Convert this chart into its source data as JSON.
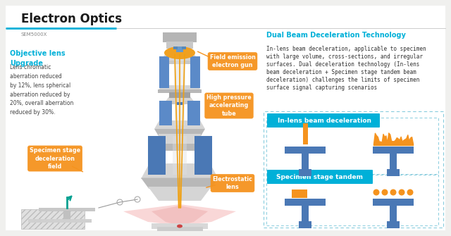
{
  "title": "Electron Optics",
  "subtitle": "SEM5000X",
  "bg_color": "#f5f5f3",
  "title_color": "#1a1a1a",
  "cyan_color": "#00b0d8",
  "orange_color": "#f5931e",
  "blue_color": "#4a78b5",
  "left_title": "Objective lens\nUpgrade",
  "left_text": "Lens chromatic\naberration reduced\nby 12%, lens spherical\naberration reduced by\n20%, overall aberration\nreduced by 30%.",
  "right_title": "Dual Beam Deceleration Technology",
  "right_text_line1": "In-lens beam deceleration, applicable to specimen",
  "right_text_line2": "with large volume, cross-sections, and irregular",
  "right_text_line3": "surfaces. Dual deceleration technology (In-lens",
  "right_text_line4": "beam deceleration + Specimen stage tandem beam",
  "right_text_line5": "deceleration) challenges the limits of specimen",
  "right_text_line6": "surface signal capturing scenarios",
  "box1_label": "In-lens beam deceleration",
  "box2_label": "Specimen stage tandem",
  "label_gun": "Field emission\nelectron gun",
  "label_tube": "High pressure\naccelerating\ntube",
  "label_stage": "Specimen stage\ndeceleration\nfield",
  "label_elec": "Electrostatic\nlens"
}
